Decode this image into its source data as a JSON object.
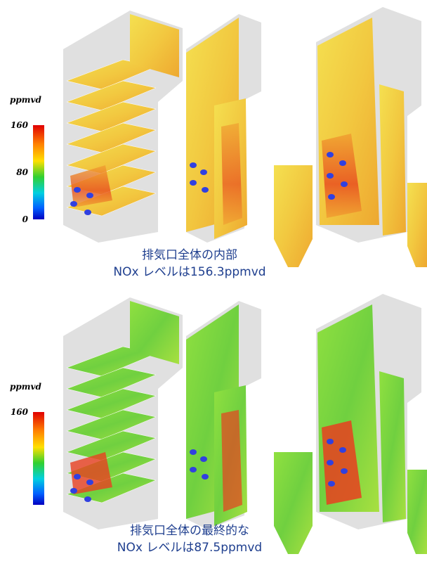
{
  "panels": [
    {
      "legend": {
        "unit": "ppmvd",
        "ticks": [
          "160",
          "80",
          "0"
        ]
      },
      "caption": [
        "排気口全体の内部",
        "NOx レベルは156.3ppmvd"
      ]
    },
    {
      "legend": {
        "unit": "ppmvd",
        "ticks": [
          "160"
        ]
      },
      "caption": [
        "排気口全体の最終的な",
        "NOx レベルは87.5ppmvd"
      ]
    }
  ]
}
